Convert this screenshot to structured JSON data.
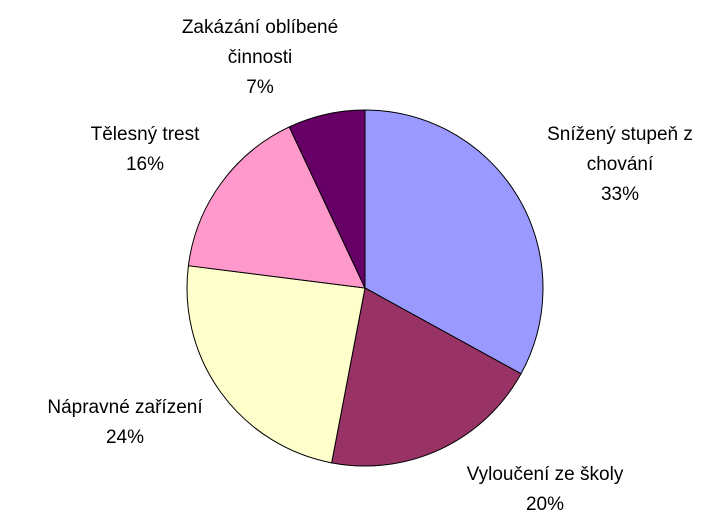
{
  "chart_data": {
    "type": "pie",
    "categories": [
      "Snížený stupeň z chování",
      "Vyloučení ze školy",
      "Nápravné zařízení",
      "Tělesný trest",
      "Zakázání oblíbené činnosti"
    ],
    "values": [
      33,
      20,
      24,
      16,
      7
    ],
    "value_labels": [
      "33%",
      "20%",
      "24%",
      "16%",
      "7%"
    ],
    "colors": [
      "#9999ff",
      "#993366",
      "#ffffcc",
      "#ff99cc",
      "#660066"
    ]
  }
}
